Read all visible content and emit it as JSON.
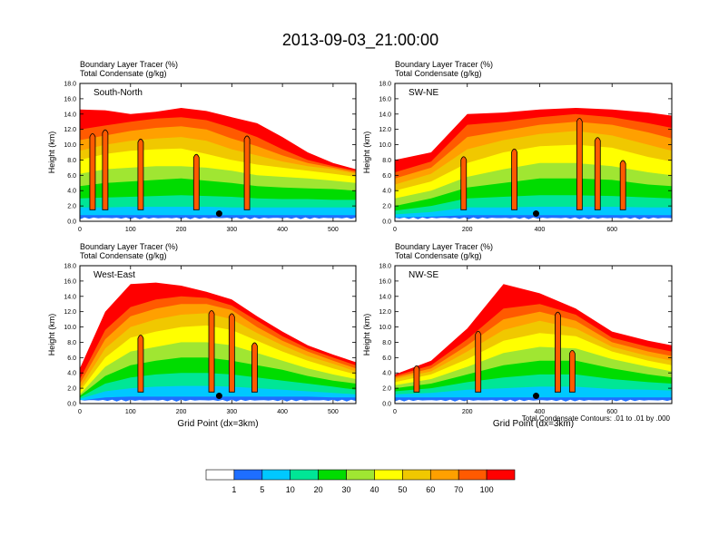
{
  "figure": {
    "title": "2013-09-03_21:00:00",
    "footnote": "Total Condensate Contours: .01 to .01 by .000"
  },
  "chart_data": [
    {
      "type": "heatmap",
      "panel_label": "South-North",
      "title_line1": "Boundary Layer Tracer    (%)",
      "title_line2": "Total Condensate    (g/kg)",
      "ylabel": "Height (km)",
      "xlabel": "",
      "xlim": [
        0,
        545
      ],
      "ylim": [
        0,
        18
      ],
      "xticks": [
        0,
        100,
        200,
        300,
        400,
        500
      ],
      "yticks": [
        "0.0",
        "2.0",
        "4.0",
        "6.0",
        "8.0",
        "10.0",
        "12.0",
        "14.0",
        "16.0",
        "18.0"
      ],
      "marker": {
        "x": 275,
        "y": 1.0
      },
      "tops": [
        {
          "x": 0,
          "lvl": [
            0.8,
            1.8,
            3.0,
            4.6,
            6.2,
            8.0,
            9.2,
            10.6,
            12.0,
            14.6
          ]
        },
        {
          "x": 50,
          "lvl": [
            0.8,
            1.8,
            3.1,
            5.0,
            6.8,
            8.8,
            10.0,
            11.2,
            12.5,
            14.5
          ]
        },
        {
          "x": 100,
          "lvl": [
            0.8,
            1.9,
            3.2,
            5.2,
            7.0,
            9.2,
            10.5,
            11.8,
            13.0,
            14.0
          ]
        },
        {
          "x": 150,
          "lvl": [
            0.8,
            1.9,
            3.3,
            5.4,
            7.2,
            9.4,
            10.8,
            12.2,
            13.4,
            14.3
          ]
        },
        {
          "x": 200,
          "lvl": [
            0.8,
            1.9,
            3.4,
            5.6,
            7.2,
            9.5,
            11.0,
            12.4,
            13.6,
            14.8
          ]
        },
        {
          "x": 250,
          "lvl": [
            0.8,
            1.9,
            3.3,
            5.3,
            7.0,
            8.8,
            10.5,
            12.0,
            13.2,
            14.4
          ]
        },
        {
          "x": 300,
          "lvl": [
            0.8,
            1.8,
            3.2,
            5.0,
            6.6,
            8.0,
            9.4,
            10.8,
            12.2,
            13.6
          ]
        },
        {
          "x": 350,
          "lvl": [
            0.8,
            1.8,
            3.0,
            4.6,
            6.0,
            7.4,
            8.6,
            9.8,
            11.0,
            12.8
          ]
        },
        {
          "x": 400,
          "lvl": [
            0.8,
            1.8,
            2.9,
            4.4,
            5.8,
            7.0,
            7.8,
            8.6,
            9.4,
            11.0
          ]
        },
        {
          "x": 450,
          "lvl": [
            0.8,
            1.8,
            2.9,
            4.3,
            5.6,
            6.6,
            7.2,
            7.6,
            8.0,
            9.0
          ]
        },
        {
          "x": 500,
          "lvl": [
            0.8,
            1.8,
            2.8,
            4.2,
            5.3,
            6.2,
            6.8,
            7.0,
            7.2,
            7.6
          ]
        },
        {
          "x": 545,
          "lvl": [
            0.8,
            1.8,
            2.8,
            4.0,
            5.0,
            5.8,
            6.2,
            6.4,
            6.6,
            6.8
          ]
        }
      ],
      "plumes": [
        [
          25,
          11.5
        ],
        [
          50,
          12.0
        ],
        [
          120,
          10.8
        ],
        [
          230,
          8.8
        ],
        [
          330,
          11.2
        ]
      ]
    },
    {
      "type": "heatmap",
      "panel_label": "SW-NE",
      "title_line1": "Boundary Layer Tracer    (%)",
      "title_line2": "Total Condensate    (g/kg)",
      "ylabel": "Height (km)",
      "xlabel": "",
      "xlim": [
        0,
        765
      ],
      "ylim": [
        0,
        18
      ],
      "xticks": [
        0,
        200,
        400,
        600
      ],
      "yticks": [
        "0.0",
        "2.0",
        "4.0",
        "6.0",
        "8.0",
        "10.0",
        "12.0",
        "14.0",
        "16.0",
        "18.0"
      ],
      "marker": {
        "x": 390,
        "y": 1.0
      },
      "tops": [
        {
          "x": 0,
          "lvl": [
            0.5,
            0.9,
            1.4,
            2.0,
            3.0,
            4.0,
            4.8,
            5.6,
            6.4,
            8.0
          ]
        },
        {
          "x": 100,
          "lvl": [
            0.6,
            1.2,
            2.0,
            3.0,
            4.0,
            5.2,
            6.2,
            7.0,
            7.8,
            9.0
          ]
        },
        {
          "x": 200,
          "lvl": [
            0.8,
            1.8,
            3.0,
            4.4,
            5.8,
            7.6,
            9.4,
            11.0,
            12.6,
            14.0
          ]
        },
        {
          "x": 300,
          "lvl": [
            0.8,
            1.8,
            3.2,
            5.0,
            6.8,
            9.0,
            10.6,
            11.8,
            13.0,
            14.2
          ]
        },
        {
          "x": 400,
          "lvl": [
            0.8,
            1.9,
            3.4,
            5.6,
            7.6,
            9.8,
            11.4,
            12.6,
            13.6,
            14.6
          ]
        },
        {
          "x": 500,
          "lvl": [
            0.8,
            1.9,
            3.4,
            5.6,
            7.6,
            10.0,
            11.8,
            13.0,
            14.0,
            14.8
          ]
        },
        {
          "x": 600,
          "lvl": [
            0.8,
            1.9,
            3.3,
            5.4,
            7.2,
            9.6,
            11.2,
            12.6,
            13.6,
            14.6
          ]
        },
        {
          "x": 700,
          "lvl": [
            0.8,
            1.8,
            3.1,
            4.8,
            6.4,
            8.4,
            10.0,
            11.6,
            12.8,
            14.2
          ]
        },
        {
          "x": 765,
          "lvl": [
            0.8,
            1.8,
            3.0,
            4.6,
            6.0,
            7.8,
            9.2,
            10.8,
            12.2,
            13.8
          ]
        }
      ],
      "plumes": [
        [
          190,
          8.5
        ],
        [
          330,
          9.5
        ],
        [
          510,
          13.5
        ],
        [
          560,
          11.0
        ],
        [
          630,
          8.0
        ]
      ]
    },
    {
      "type": "heatmap",
      "panel_label": "West-East",
      "title_line1": "Boundary Layer Tracer    (%)",
      "title_line2": "Total Condensate    (g/kg)",
      "ylabel": "Height (km)",
      "xlabel": "Grid Point (dx=3km)",
      "xlim": [
        0,
        545
      ],
      "ylim": [
        0,
        18
      ],
      "xticks": [
        0,
        100,
        200,
        300,
        400,
        500
      ],
      "yticks": [
        "0.0",
        "2.0",
        "4.0",
        "6.0",
        "8.0",
        "10.0",
        "12.0",
        "14.0",
        "16.0",
        "18.0"
      ],
      "marker": {
        "x": 275,
        "y": 1.0
      },
      "tops": [
        {
          "x": 0,
          "lvl": [
            0.4,
            0.6,
            0.8,
            1.0,
            1.2,
            1.6,
            2.0,
            2.6,
            3.2,
            4.6
          ]
        },
        {
          "x": 50,
          "lvl": [
            0.8,
            1.6,
            2.6,
            3.6,
            4.8,
            6.0,
            7.2,
            8.4,
            9.6,
            12.0
          ]
        },
        {
          "x": 100,
          "lvl": [
            0.9,
            2.0,
            3.4,
            5.0,
            6.8,
            8.6,
            10.0,
            11.4,
            12.6,
            15.6
          ]
        },
        {
          "x": 150,
          "lvl": [
            0.9,
            2.2,
            3.8,
            5.6,
            7.4,
            9.4,
            11.0,
            12.4,
            13.6,
            15.8
          ]
        },
        {
          "x": 200,
          "lvl": [
            0.9,
            2.3,
            4.0,
            6.0,
            8.0,
            10.0,
            11.6,
            13.0,
            14.0,
            15.4
          ]
        },
        {
          "x": 250,
          "lvl": [
            0.9,
            2.3,
            4.0,
            6.0,
            8.0,
            10.2,
            11.8,
            13.0,
            13.8,
            14.6
          ]
        },
        {
          "x": 300,
          "lvl": [
            0.9,
            2.2,
            3.8,
            5.6,
            7.6,
            9.6,
            11.0,
            12.2,
            12.8,
            13.6
          ]
        },
        {
          "x": 350,
          "lvl": [
            0.9,
            2.0,
            3.4,
            5.0,
            6.6,
            8.2,
            9.2,
            10.0,
            10.8,
            11.4
          ]
        },
        {
          "x": 400,
          "lvl": [
            0.9,
            1.8,
            3.0,
            4.4,
            5.6,
            6.8,
            7.6,
            8.2,
            8.8,
            9.4
          ]
        },
        {
          "x": 450,
          "lvl": [
            0.9,
            1.6,
            2.6,
            3.6,
            4.6,
            5.6,
            6.2,
            6.8,
            7.2,
            7.6
          ]
        },
        {
          "x": 500,
          "lvl": [
            0.8,
            1.4,
            2.2,
            3.0,
            3.8,
            4.6,
            5.2,
            5.6,
            6.0,
            6.4
          ]
        },
        {
          "x": 545,
          "lvl": [
            0.8,
            1.2,
            1.8,
            2.6,
            3.2,
            3.8,
            4.2,
            4.6,
            5.0,
            5.4
          ]
        }
      ],
      "plumes": [
        [
          120,
          9.0
        ],
        [
          260,
          12.2
        ],
        [
          300,
          11.8
        ],
        [
          345,
          8.0
        ]
      ]
    },
    {
      "type": "heatmap",
      "panel_label": "NW-SE",
      "title_line1": "Boundary Layer Tracer    (%)",
      "title_line2": "Total Condensate    (g/kg)",
      "ylabel": "Height (km)",
      "xlabel": "Grid Point (dx=3km)",
      "xlim": [
        0,
        765
      ],
      "ylim": [
        0,
        18
      ],
      "xticks": [
        0,
        200,
        400,
        600
      ],
      "yticks": [
        "0.0",
        "2.0",
        "4.0",
        "6.0",
        "8.0",
        "10.0",
        "12.0",
        "14.0",
        "16.0",
        "18.0"
      ],
      "marker": {
        "x": 390,
        "y": 1.0
      },
      "tops": [
        {
          "x": 0,
          "lvl": [
            0.8,
            1.2,
            1.6,
            2.0,
            2.4,
            2.8,
            3.2,
            3.4,
            3.6,
            3.8
          ]
        },
        {
          "x": 100,
          "lvl": [
            0.8,
            1.4,
            2.0,
            2.6,
            3.2,
            3.8,
            4.2,
            4.6,
            5.0,
            5.6
          ]
        },
        {
          "x": 200,
          "lvl": [
            0.8,
            1.8,
            2.8,
            3.8,
            4.8,
            5.8,
            6.8,
            7.6,
            8.4,
            9.8
          ]
        },
        {
          "x": 300,
          "lvl": [
            0.8,
            2.0,
            3.4,
            5.0,
            6.6,
            8.2,
            9.6,
            11.0,
            12.4,
            15.6
          ]
        },
        {
          "x": 400,
          "lvl": [
            0.8,
            2.2,
            3.8,
            5.6,
            7.4,
            9.2,
            10.8,
            12.0,
            13.0,
            14.4
          ]
        },
        {
          "x": 500,
          "lvl": [
            0.8,
            2.2,
            3.8,
            5.6,
            7.2,
            8.8,
            9.8,
            10.8,
            11.6,
            12.4
          ]
        },
        {
          "x": 600,
          "lvl": [
            0.8,
            1.9,
            3.2,
            4.6,
            5.8,
            6.8,
            7.4,
            8.0,
            8.6,
            9.4
          ]
        },
        {
          "x": 700,
          "lvl": [
            0.8,
            1.8,
            2.8,
            3.8,
            4.8,
            5.6,
            6.2,
            6.8,
            7.4,
            8.2
          ]
        },
        {
          "x": 765,
          "lvl": [
            0.8,
            1.7,
            2.6,
            3.4,
            4.2,
            5.0,
            5.6,
            6.2,
            6.8,
            7.6
          ]
        }
      ],
      "plumes": [
        [
          60,
          5.0
        ],
        [
          230,
          9.5
        ],
        [
          450,
          12.0
        ],
        [
          490,
          7.0
        ]
      ]
    }
  ],
  "colorbar": {
    "colors": [
      "#ffffff",
      "#1e6eff",
      "#00c8ff",
      "#00e696",
      "#00dc00",
      "#a0e632",
      "#ffff00",
      "#f0c800",
      "#ffa000",
      "#ff5a00",
      "#ff0000"
    ],
    "labels": [
      "1",
      "5",
      "10",
      "20",
      "30",
      "40",
      "50",
      "60",
      "70",
      "100"
    ]
  }
}
